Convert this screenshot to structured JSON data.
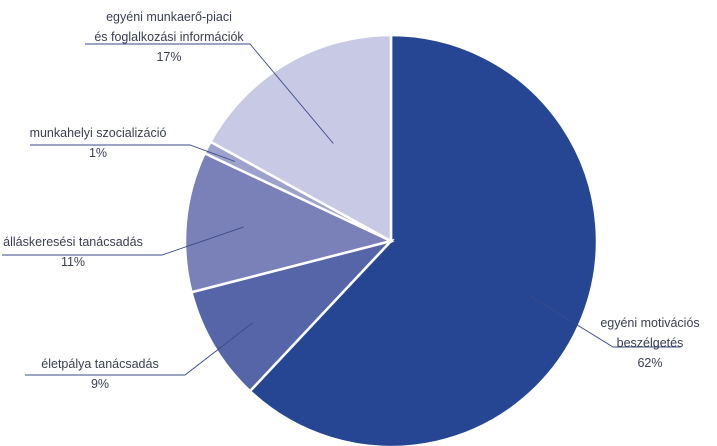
{
  "chart_data": {
    "type": "pie",
    "start_angle_deg": 0,
    "direction": "clockwise",
    "slices": [
      {
        "label": [
          "egyéni motivációs",
          "beszélgetés"
        ],
        "value": 62,
        "pct": "62%",
        "color": "#264694"
      },
      {
        "label": [
          "életpálya tanácsadás"
        ],
        "value": 9,
        "pct": "9%",
        "color": "#5565a7"
      },
      {
        "label": [
          "álláskeresési tanácsadás"
        ],
        "value": 11,
        "pct": "11%",
        "color": "#7a80b8"
      },
      {
        "label": [
          "munkahelyi szocializáció"
        ],
        "value": 1,
        "pct": "1%",
        "color": "#9da1cd"
      },
      {
        "label": [
          "egyéni munkaerő-piaci",
          "és foglalkozási információk"
        ],
        "value": 17,
        "pct": "17%",
        "color": "#c8c9e4"
      }
    ]
  }
}
